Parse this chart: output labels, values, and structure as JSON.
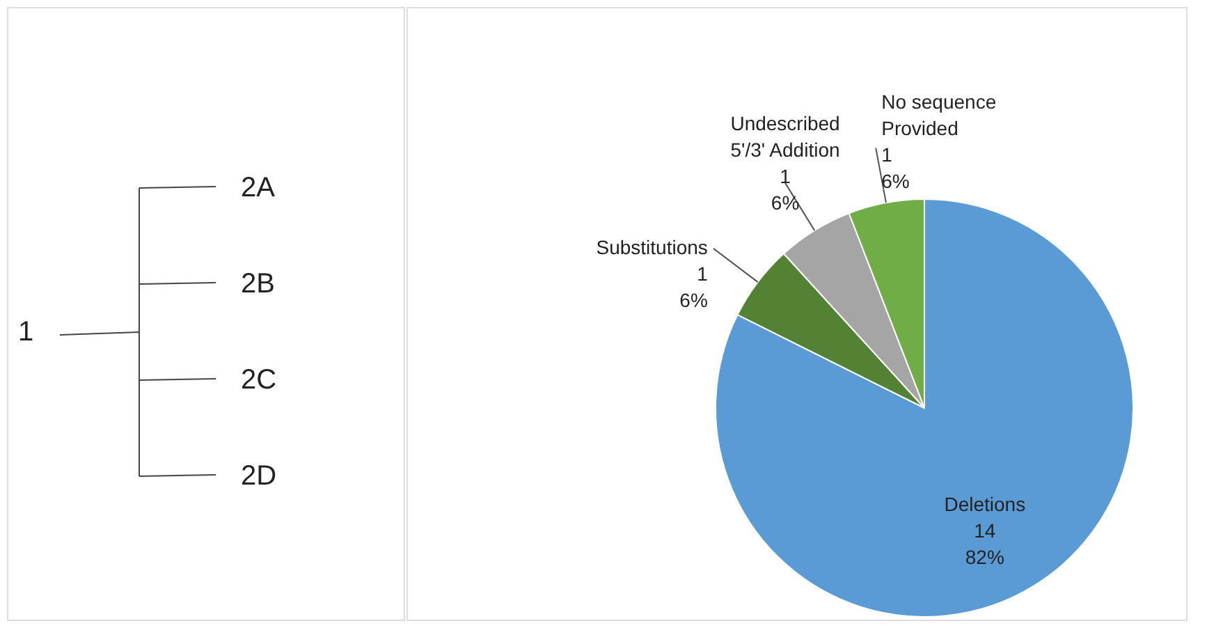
{
  "chart_data": [
    {
      "type": "other",
      "annotations": [
        "1",
        "2A",
        "2B",
        "2C",
        "2D"
      ]
    },
    {
      "type": "pie",
      "categories": [
        "Deletions",
        "Substitutions",
        "Undescribed 5'/3' Addition",
        "No sequence Provided"
      ],
      "values": [
        82.36,
        5.88,
        5.88,
        5.88
      ],
      "colors": [
        "#5b9bd5",
        "#548235",
        "#a5a5a5",
        "#70ad47"
      ],
      "value_labels": [
        "14\n82%",
        "1\n6%",
        "1\n6%",
        "1\n6%"
      ]
    }
  ]
}
